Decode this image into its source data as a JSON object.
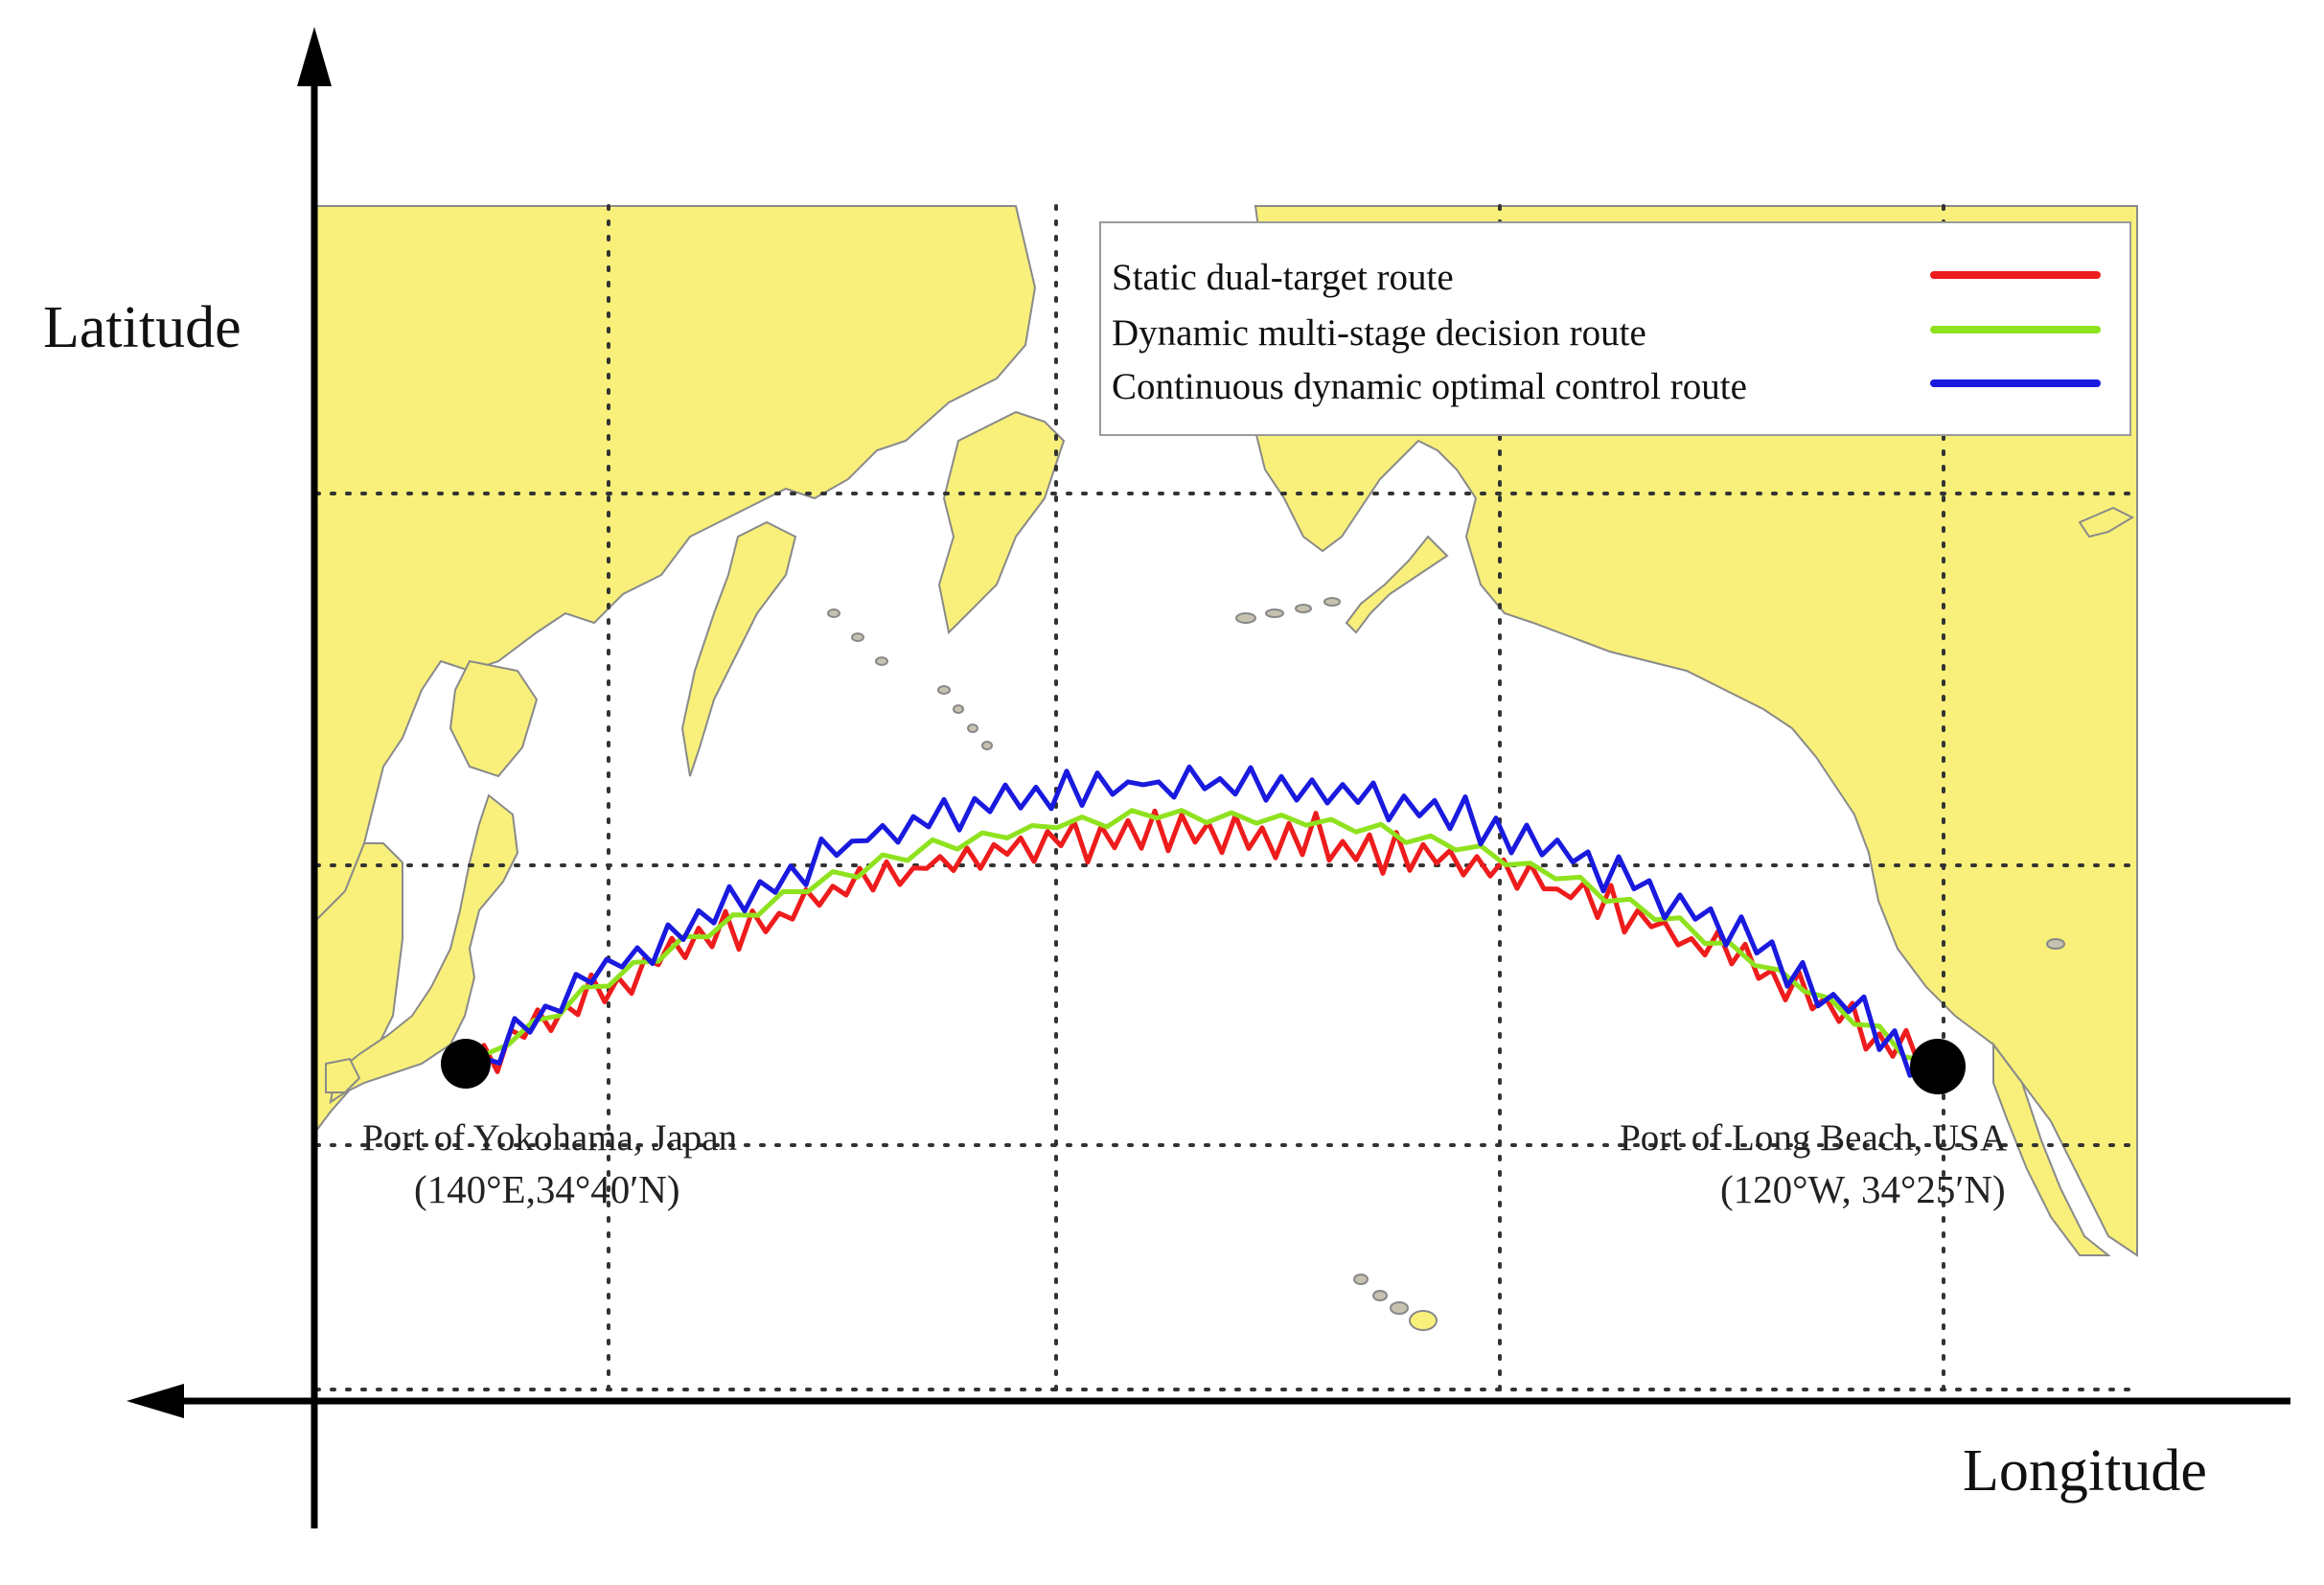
{
  "axes": {
    "y_title": "Latitude",
    "x_title": "Longitude"
  },
  "legend": {
    "items": [
      {
        "label": "Static dual-target route",
        "color": "#ee1c1c"
      },
      {
        "label": "Dynamic multi-stage decision route",
        "color": "#8fe21e"
      },
      {
        "label": "Continuous dynamic optimal control route",
        "color": "#1a1adf"
      }
    ]
  },
  "ports": {
    "origin": {
      "name": "Port of Yokohama, Japan",
      "coords": "(140°E,34°40′N)"
    },
    "destination": {
      "name": "Port of Long Beach, USA",
      "coords": "(120°W, 34°25′N)"
    }
  },
  "colors": {
    "land": "#f8f07a",
    "ocean": "#ffffff",
    "port_marker": "#000000"
  }
}
